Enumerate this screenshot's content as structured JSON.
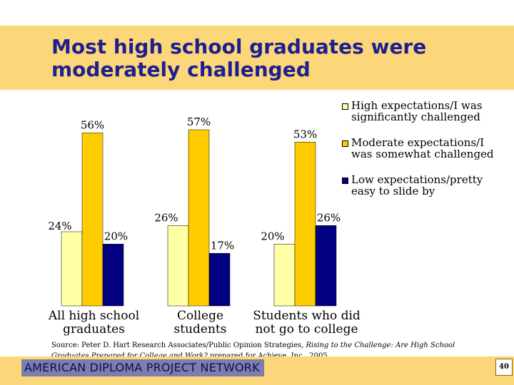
{
  "slide": {
    "title": "Most high school graduates were moderately challenged",
    "footer": "AMERICAN DIPLOMA PROJECT NETWORK",
    "page_number": "40",
    "source": {
      "prefix": "Source: Peter D. Hart Research Associates/Public Opinion Strategies, ",
      "publication": "Rising to the Challenge: Are High School Graduates Prepared for College and Work?",
      "suffix": " prepared for Achieve, Inc., 2005."
    }
  },
  "chart_data": {
    "type": "bar",
    "title": "Most high school graduates were moderately challenged",
    "xlabel": "",
    "ylabel": "",
    "ylim": [
      0,
      60
    ],
    "grid": false,
    "legend_position": "top-right",
    "categories": [
      "All high school graduates",
      "College students",
      "Students who did not go to college"
    ],
    "category_lines": [
      [
        "All high school",
        "graduates"
      ],
      [
        "College",
        "students"
      ],
      [
        "Students who did",
        "not go to college"
      ]
    ],
    "series": [
      {
        "name": "High expectations/I was significantly challenged",
        "values": [
          24,
          26,
          20
        ],
        "labels": [
          "24%",
          "26%",
          "20%"
        ],
        "color": "#ffffa6"
      },
      {
        "name": "Moderate expectations/I was somewhat challenged",
        "values": [
          56,
          57,
          53
        ],
        "labels": [
          "56%",
          "57%",
          "53%"
        ],
        "color": "#ffcc00"
      },
      {
        "name": "Low expectations/pretty easy to slide by",
        "values": [
          20,
          17,
          26
        ],
        "labels": [
          "20%",
          "17%",
          "26%"
        ],
        "color": "#000080"
      }
    ],
    "legend_lines": [
      [
        "High expectations/I was",
        "significantly challenged"
      ],
      [
        "Moderate expectations/I",
        "was somewhat challenged"
      ],
      [
        "Low expectations/pretty",
        "easy to slide by"
      ]
    ]
  }
}
